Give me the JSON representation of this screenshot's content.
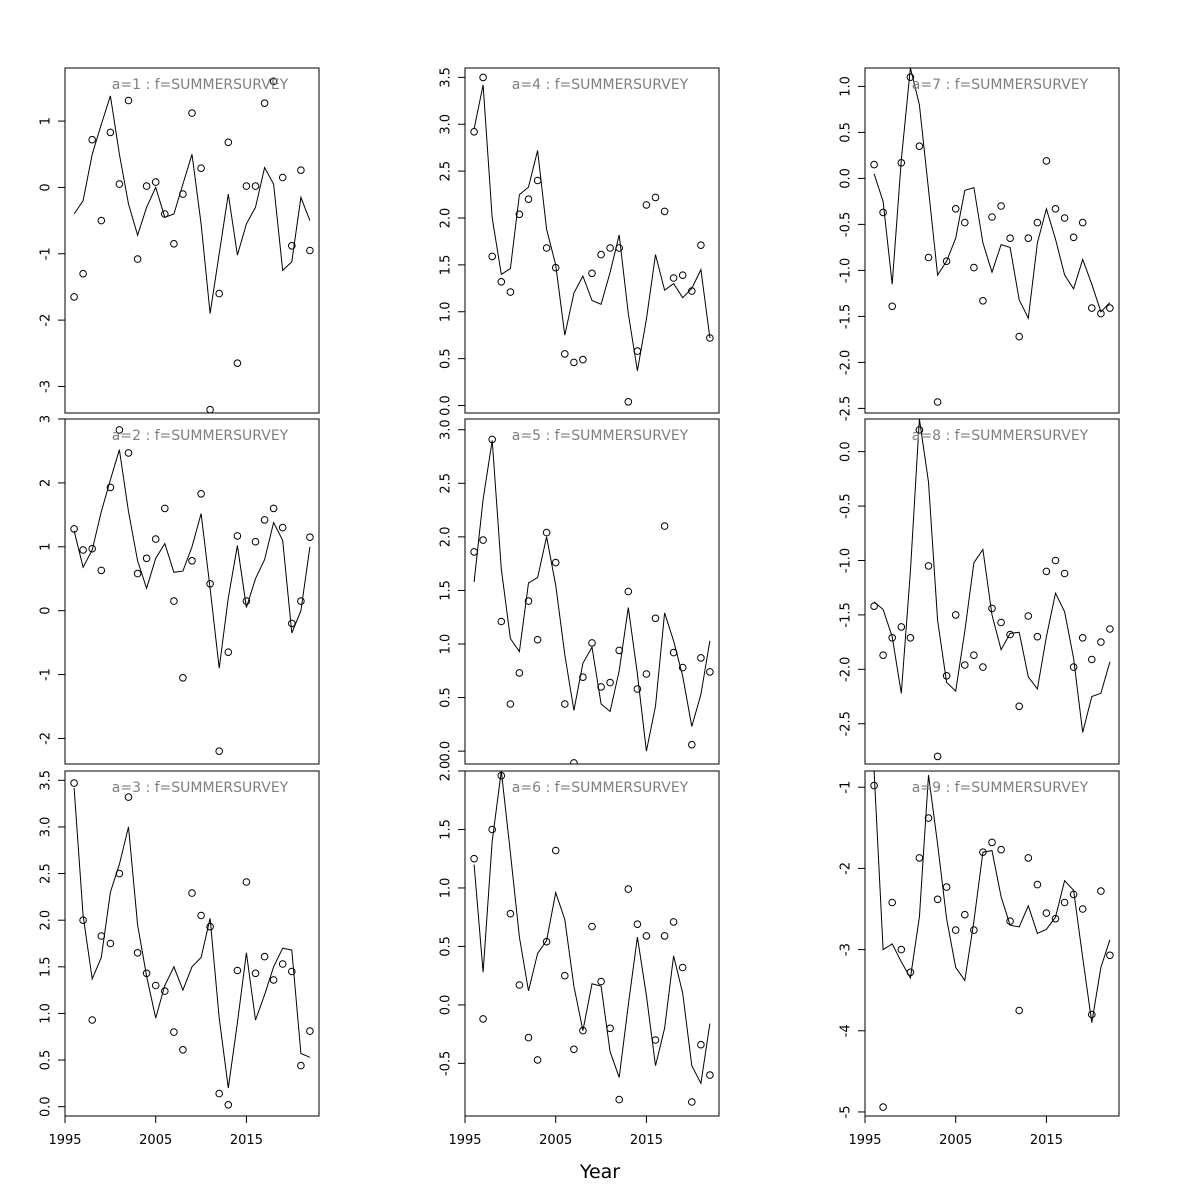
{
  "figure": {
    "xlabel": "Year"
  },
  "chart_data": [
    {
      "type": "scatter+line",
      "title": "a=1 : f=SUMMERSURVEY",
      "x": [
        1996,
        1997,
        1998,
        1999,
        2000,
        2001,
        2002,
        2003,
        2004,
        2005,
        2006,
        2007,
        2008,
        2009,
        2010,
        2011,
        2012,
        2013,
        2014,
        2015,
        2016,
        2017,
        2018,
        2019,
        2020,
        2021,
        2022
      ],
      "observed": [
        -1.65,
        -1.3,
        0.72,
        -0.5,
        0.83,
        0.05,
        1.31,
        -1.08,
        0.02,
        0.08,
        -0.4,
        -0.85,
        -0.1,
        1.12,
        0.29,
        -3.35,
        -1.6,
        0.68,
        -2.65,
        0.02,
        0.02,
        1.27,
        1.6,
        0.15,
        -0.88,
        0.26,
        -0.95
      ],
      "fitted": [
        -0.4,
        -0.2,
        0.5,
        0.95,
        1.38,
        0.5,
        -0.25,
        -0.72,
        -0.3,
        0.0,
        -0.45,
        -0.4,
        0.05,
        0.5,
        -0.55,
        -1.9,
        -1.0,
        -0.1,
        -1.02,
        -0.55,
        -0.3,
        0.3,
        0.05,
        -1.25,
        -1.12,
        -0.15,
        -0.5
      ],
      "ylim": [
        -3.4,
        1.8
      ],
      "yticks": [
        -3,
        -2,
        -1,
        0,
        1
      ]
    },
    {
      "type": "scatter+line",
      "title": "a=2 : f=SUMMERSURVEY",
      "x": [
        1996,
        1997,
        1998,
        1999,
        2000,
        2001,
        2002,
        2003,
        2004,
        2005,
        2006,
        2007,
        2008,
        2009,
        2010,
        2011,
        2012,
        2013,
        2014,
        2015,
        2016,
        2017,
        2018,
        2019,
        2020,
        2021,
        2022
      ],
      "observed": [
        1.28,
        0.95,
        0.97,
        0.63,
        1.93,
        2.83,
        2.47,
        0.58,
        0.82,
        1.12,
        1.6,
        0.15,
        -1.05,
        0.78,
        1.83,
        0.42,
        -2.2,
        -0.65,
        1.17,
        0.15,
        1.08,
        1.42,
        1.6,
        1.3,
        -0.2,
        0.15,
        1.15
      ],
      "fitted": [
        1.25,
        0.68,
        0.95,
        1.55,
        2.05,
        2.52,
        1.55,
        0.78,
        0.35,
        0.82,
        1.05,
        0.6,
        0.62,
        1.0,
        1.52,
        0.35,
        -0.9,
        0.2,
        1.02,
        0.05,
        0.5,
        0.8,
        1.38,
        1.1,
        -0.35,
        0.0,
        1.0
      ],
      "ylim": [
        -2.4,
        3.0
      ],
      "yticks": [
        -2,
        -1,
        0,
        1,
        2,
        3
      ]
    },
    {
      "type": "scatter+line",
      "title": "a=3 : f=SUMMERSURVEY",
      "x": [
        1996,
        1997,
        1998,
        1999,
        2000,
        2001,
        2002,
        2003,
        2004,
        2005,
        2006,
        2007,
        2008,
        2009,
        2010,
        2011,
        2012,
        2013,
        2014,
        2015,
        2016,
        2017,
        2018,
        2019,
        2020,
        2021,
        2022
      ],
      "observed": [
        3.47,
        2.0,
        0.93,
        1.83,
        1.75,
        2.5,
        3.32,
        1.65,
        1.43,
        1.3,
        1.24,
        0.8,
        0.61,
        2.29,
        2.05,
        1.93,
        0.14,
        0.02,
        1.46,
        2.41,
        1.43,
        1.61,
        1.36,
        1.53,
        1.45,
        0.44,
        0.81
      ],
      "fitted": [
        3.42,
        2.05,
        1.37,
        1.6,
        2.3,
        2.6,
        3.0,
        1.95,
        1.4,
        0.95,
        1.3,
        1.5,
        1.25,
        1.5,
        1.6,
        2.02,
        0.95,
        0.2,
        0.9,
        1.65,
        0.93,
        1.2,
        1.5,
        1.7,
        1.68,
        0.57,
        0.53
      ],
      "ylim": [
        -0.1,
        3.6
      ],
      "yticks": [
        0.0,
        0.5,
        1.0,
        1.5,
        2.0,
        2.5,
        3.0,
        3.5
      ]
    },
    {
      "type": "scatter+line",
      "title": "a=4 : f=SUMMERSURVEY",
      "x": [
        1996,
        1997,
        1998,
        1999,
        2000,
        2001,
        2002,
        2003,
        2004,
        2005,
        2006,
        2007,
        2008,
        2009,
        2010,
        2011,
        2012,
        2013,
        2014,
        2015,
        2016,
        2017,
        2018,
        2019,
        2020,
        2021,
        2022
      ],
      "observed": [
        2.92,
        3.5,
        1.59,
        1.32,
        1.21,
        2.04,
        2.2,
        2.4,
        1.68,
        1.47,
        0.55,
        0.46,
        0.49,
        1.41,
        1.61,
        1.68,
        1.68,
        0.04,
        0.58,
        2.14,
        2.22,
        2.07,
        1.36,
        1.39,
        1.22,
        1.71,
        0.72
      ],
      "fitted": [
        2.95,
        3.42,
        2.0,
        1.4,
        1.46,
        2.25,
        2.33,
        2.72,
        1.88,
        1.5,
        0.75,
        1.2,
        1.38,
        1.12,
        1.08,
        1.42,
        1.82,
        0.98,
        0.37,
        0.92,
        1.61,
        1.23,
        1.3,
        1.15,
        1.25,
        1.45,
        0.72
      ],
      "ylim": [
        -0.08,
        3.6
      ],
      "yticks": [
        0.0,
        0.5,
        1.0,
        1.5,
        2.0,
        2.5,
        3.0,
        3.5
      ]
    },
    {
      "type": "scatter+line",
      "title": "a=5 : f=SUMMERSURVEY",
      "x": [
        1996,
        1997,
        1998,
        1999,
        2000,
        2001,
        2002,
        2003,
        2004,
        2005,
        2006,
        2007,
        2008,
        2009,
        2010,
        2011,
        2012,
        2013,
        2014,
        2015,
        2016,
        2017,
        2018,
        2019,
        2020,
        2021,
        2022
      ],
      "observed": [
        1.86,
        1.97,
        2.91,
        1.21,
        0.44,
        0.73,
        1.4,
        1.04,
        2.04,
        1.76,
        0.44,
        -0.11,
        0.69,
        1.01,
        0.6,
        0.64,
        0.94,
        1.49,
        0.58,
        0.72,
        1.24,
        2.1,
        0.92,
        0.78,
        0.06,
        0.87,
        0.74
      ],
      "fitted": [
        1.58,
        2.35,
        2.9,
        1.7,
        1.05,
        0.93,
        1.57,
        1.62,
        2.0,
        1.55,
        0.9,
        0.38,
        0.82,
        0.97,
        0.44,
        0.37,
        0.75,
        1.34,
        0.72,
        0.0,
        0.42,
        1.29,
        1.03,
        0.7,
        0.23,
        0.53,
        1.03
      ],
      "ylim": [
        -0.12,
        3.1
      ],
      "yticks": [
        0.0,
        0.5,
        1.0,
        1.5,
        2.0,
        2.5,
        3.0
      ]
    },
    {
      "type": "scatter+line",
      "title": "a=6 : f=SUMMERSURVEY",
      "x": [
        1996,
        1997,
        1998,
        1999,
        2000,
        2001,
        2002,
        2003,
        2004,
        2005,
        2006,
        2007,
        2008,
        2009,
        2010,
        2011,
        2012,
        2013,
        2014,
        2015,
        2016,
        2017,
        2018,
        2019,
        2020,
        2021,
        2022
      ],
      "observed": [
        1.25,
        -0.12,
        1.5,
        1.96,
        0.78,
        0.17,
        -0.28,
        -0.47,
        0.54,
        1.32,
        0.25,
        -0.38,
        -0.22,
        0.67,
        0.2,
        -0.2,
        -0.81,
        0.99,
        0.69,
        0.59,
        -0.3,
        0.59,
        0.71,
        0.32,
        -0.83,
        -0.34,
        -0.6
      ],
      "fitted": [
        1.2,
        0.28,
        1.4,
        2.0,
        1.3,
        0.58,
        0.12,
        0.44,
        0.55,
        0.96,
        0.73,
        0.16,
        -0.22,
        0.18,
        0.16,
        -0.4,
        -0.62,
        0.0,
        0.58,
        0.08,
        -0.52,
        -0.2,
        0.42,
        0.1,
        -0.52,
        -0.67,
        -0.16
      ],
      "ylim": [
        -0.95,
        2.0
      ],
      "yticks": [
        -0.5,
        0.0,
        0.5,
        1.0,
        1.5,
        2.0
      ]
    },
    {
      "type": "scatter+line",
      "title": "a=7 : f=SUMMERSURVEY",
      "x": [
        1996,
        1997,
        1998,
        1999,
        2000,
        2001,
        2002,
        2003,
        2004,
        2005,
        2006,
        2007,
        2008,
        2009,
        2010,
        2011,
        2012,
        2013,
        2014,
        2015,
        2016,
        2017,
        2018,
        2019,
        2020,
        2021,
        2022
      ],
      "observed": [
        0.15,
        -0.37,
        -1.39,
        0.17,
        1.1,
        0.35,
        -0.86,
        -2.43,
        -0.9,
        -0.33,
        -0.48,
        -0.97,
        -1.33,
        -0.42,
        -0.3,
        -0.65,
        -1.72,
        -0.65,
        -0.48,
        0.19,
        -0.33,
        -0.43,
        -0.64,
        -0.48,
        -1.41,
        -1.47,
        -1.41
      ],
      "fitted": [
        0.05,
        -0.25,
        -1.15,
        0.2,
        1.2,
        0.8,
        -0.12,
        -1.05,
        -0.9,
        -0.65,
        -0.13,
        -0.1,
        -0.7,
        -1.02,
        -0.72,
        -0.75,
        -1.32,
        -1.52,
        -0.7,
        -0.33,
        -0.66,
        -1.05,
        -1.2,
        -0.88,
        -1.15,
        -1.45,
        -1.35
      ],
      "ylim": [
        -2.55,
        1.2
      ],
      "yticks": [
        -2.5,
        -2.0,
        -1.5,
        -1.0,
        -0.5,
        0.0,
        0.5,
        1.0
      ]
    },
    {
      "type": "scatter+line",
      "title": "a=8 : f=SUMMERSURVEY",
      "x": [
        1996,
        1997,
        1998,
        1999,
        2000,
        2001,
        2002,
        2003,
        2004,
        2005,
        2006,
        2007,
        2008,
        2009,
        2010,
        2011,
        2012,
        2013,
        2014,
        2015,
        2016,
        2017,
        2018,
        2019,
        2020,
        2021,
        2022
      ],
      "observed": [
        -1.42,
        -1.87,
        -1.71,
        -1.61,
        -1.71,
        0.2,
        -1.05,
        -2.8,
        -2.06,
        -1.5,
        -1.96,
        -1.87,
        -1.98,
        -1.44,
        -1.57,
        -1.68,
        -2.34,
        -1.51,
        -1.7,
        -1.1,
        -1.0,
        -1.12,
        -1.98,
        -1.71,
        -1.91,
        -1.75,
        -1.63
      ],
      "fitted": [
        -1.38,
        -1.45,
        -1.7,
        -2.22,
        -1.1,
        0.3,
        -0.28,
        -1.55,
        -2.12,
        -2.2,
        -1.65,
        -1.02,
        -0.9,
        -1.5,
        -1.82,
        -1.67,
        -1.66,
        -2.07,
        -2.18,
        -1.7,
        -1.3,
        -1.47,
        -1.9,
        -2.58,
        -2.25,
        -2.22,
        -1.93
      ],
      "ylim": [
        -2.87,
        0.3
      ],
      "yticks": [
        -2.5,
        -2.0,
        -1.5,
        -1.0,
        -0.5,
        0.0
      ]
    },
    {
      "type": "scatter+line",
      "title": "a=9 : f=SUMMERSURVEY",
      "x": [
        1996,
        1997,
        1998,
        1999,
        2000,
        2001,
        2002,
        2003,
        2004,
        2005,
        2006,
        2007,
        2008,
        2009,
        2010,
        2011,
        2012,
        2013,
        2014,
        2015,
        2016,
        2017,
        2018,
        2019,
        2020,
        2021,
        2022
      ],
      "observed": [
        -0.98,
        -4.94,
        -2.42,
        -3.0,
        -3.28,
        -1.87,
        -1.38,
        -2.38,
        -2.23,
        -2.76,
        -2.57,
        -2.76,
        -1.8,
        -1.68,
        -1.77,
        -2.65,
        -3.75,
        -1.87,
        -2.2,
        -2.55,
        -2.62,
        -2.42,
        -2.32,
        -2.5,
        -3.8,
        -2.28,
        -3.07
      ],
      "fitted": [
        -0.8,
        -3.0,
        -2.93,
        -3.15,
        -3.35,
        -2.6,
        -0.85,
        -1.7,
        -2.62,
        -3.22,
        -3.38,
        -2.65,
        -1.8,
        -1.78,
        -2.35,
        -2.7,
        -2.72,
        -2.46,
        -2.8,
        -2.75,
        -2.6,
        -2.15,
        -2.27,
        -3.1,
        -3.9,
        -3.22,
        -2.88
      ],
      "ylim": [
        -5.05,
        -0.8
      ],
      "yticks": [
        -5,
        -4,
        -3,
        -2,
        -1
      ]
    }
  ],
  "xaxis": {
    "ticks": [
      1995,
      2005,
      2015
    ],
    "xlim": [
      1995,
      2023
    ]
  }
}
